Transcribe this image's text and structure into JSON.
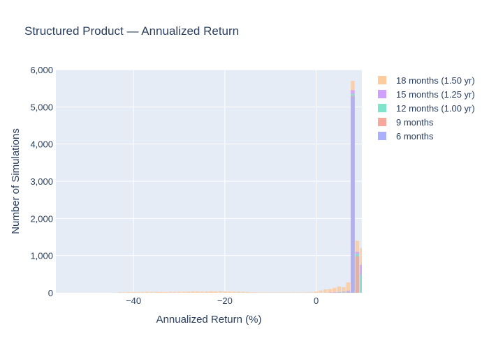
{
  "chart_data": {
    "type": "bar",
    "barmode": "overlay",
    "title": "Structured Product — Annualized Return",
    "xlabel": "Annualized Return (%)",
    "ylabel": "Number of Simulations",
    "xlim": [
      -57,
      10
    ],
    "ylim": [
      0,
      6000
    ],
    "x_ticks": [
      -40,
      -20,
      0
    ],
    "y_ticks": [
      0,
      1000,
      2000,
      3000,
      4000,
      5000,
      6000
    ],
    "y_tick_labels": [
      "0",
      "1,000",
      "2,000",
      "3,000",
      "4,000",
      "5,000",
      "6,000"
    ],
    "bin_width": 1,
    "grid": true,
    "legend_position": "right",
    "series": [
      {
        "name": "18 months (1.50 yr)",
        "color": "#FECB9F",
        "points": [
          [
            -43,
            15
          ],
          [
            -42,
            10
          ],
          [
            -41,
            20
          ],
          [
            -40,
            20
          ],
          [
            -39,
            20
          ],
          [
            -38,
            20
          ],
          [
            -37,
            25
          ],
          [
            -36,
            25
          ],
          [
            -35,
            25
          ],
          [
            -34,
            20
          ],
          [
            -33,
            20
          ],
          [
            -32,
            25
          ],
          [
            -31,
            25
          ],
          [
            -30,
            25
          ],
          [
            -29,
            30
          ],
          [
            -28,
            30
          ],
          [
            -27,
            35
          ],
          [
            -26,
            35
          ],
          [
            -25,
            35
          ],
          [
            -24,
            35
          ],
          [
            -23,
            40
          ],
          [
            -22,
            35
          ],
          [
            -21,
            40
          ],
          [
            -20,
            35
          ],
          [
            -19,
            30
          ],
          [
            -18,
            30
          ],
          [
            -17,
            30
          ],
          [
            -16,
            25
          ],
          [
            -15,
            20
          ],
          [
            -14,
            15
          ],
          [
            -13,
            15
          ],
          [
            -12,
            10
          ],
          [
            -11,
            10
          ],
          [
            -10,
            10
          ],
          [
            -9,
            10
          ],
          [
            -8,
            10
          ],
          [
            -7,
            10
          ],
          [
            -6,
            10
          ],
          [
            -5,
            10
          ],
          [
            -4,
            10
          ],
          [
            -3,
            10
          ],
          [
            -2,
            15
          ],
          [
            -1,
            15
          ],
          [
            0,
            30
          ],
          [
            1,
            60
          ],
          [
            2,
            90
          ],
          [
            3,
            100
          ],
          [
            4,
            130
          ],
          [
            5,
            170
          ],
          [
            6,
            150
          ],
          [
            7,
            280
          ],
          [
            8,
            5700
          ],
          [
            9,
            1400
          ],
          [
            10,
            1200
          ]
        ]
      },
      {
        "name": "15 months (1.25 yr)",
        "color": "#D0A0FE",
        "points": [
          [
            3,
            10
          ],
          [
            4,
            15
          ],
          [
            5,
            20
          ],
          [
            6,
            30
          ],
          [
            7,
            50
          ],
          [
            8,
            5450
          ],
          [
            9,
            1100
          ],
          [
            10,
            750
          ]
        ]
      },
      {
        "name": "12 months (1.00 yr)",
        "color": "#7FE5CA",
        "points": [
          [
            5,
            10
          ],
          [
            6,
            20
          ],
          [
            7,
            30
          ],
          [
            8,
            5350
          ],
          [
            9,
            1050
          ],
          [
            10,
            480
          ]
        ]
      },
      {
        "name": "9 months",
        "color": "#F5A89B",
        "points": [
          [
            6,
            10
          ],
          [
            7,
            20
          ],
          [
            8,
            5300
          ],
          [
            9,
            980
          ]
        ]
      },
      {
        "name": "6 months",
        "color": "#AAB0FB",
        "points": [
          [
            7,
            10
          ],
          [
            8,
            5280
          ]
        ]
      }
    ]
  }
}
